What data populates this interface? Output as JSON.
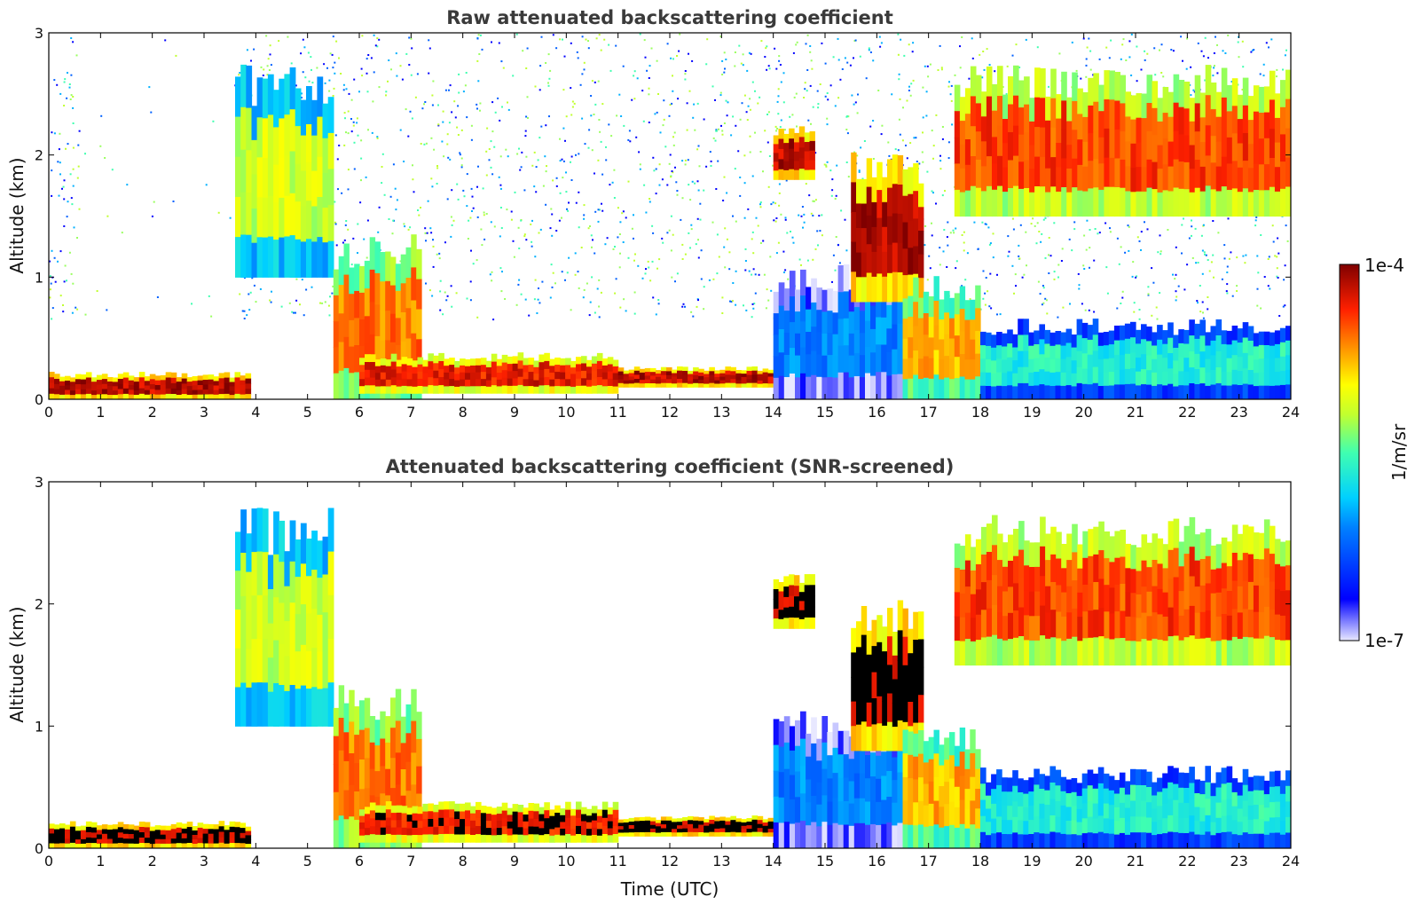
{
  "chart_data": [
    {
      "type": "heatmap",
      "title": "Raw attenuated backscattering coefficient",
      "xlabel": "",
      "ylabel": "Altitude (km)",
      "xlim": [
        0,
        24
      ],
      "ylim": [
        0,
        3
      ],
      "xticks": [
        0,
        1,
        2,
        3,
        4,
        5,
        6,
        7,
        8,
        9,
        10,
        11,
        12,
        13,
        14,
        15,
        16,
        17,
        18,
        19,
        20,
        21,
        22,
        23,
        24
      ],
      "yticks": [
        0,
        1,
        2,
        3
      ],
      "colorscale": "jet",
      "screened": false,
      "features": [
        {
          "kind": "layer",
          "t0": 0.0,
          "t1": 3.9,
          "h0": 0.0,
          "h1": 0.2,
          "v": 0.95
        },
        {
          "kind": "layer",
          "t0": 3.6,
          "t1": 5.5,
          "h0": 1.0,
          "h1": 2.6,
          "v": 0.62
        },
        {
          "kind": "layer",
          "t0": 5.5,
          "t1": 7.2,
          "h0": 0.0,
          "h1": 1.2,
          "v": 0.8
        },
        {
          "kind": "layer",
          "t0": 6.0,
          "t1": 11.0,
          "h0": 0.05,
          "h1": 0.35,
          "v": 0.9
        },
        {
          "kind": "layer",
          "t0": 11.0,
          "t1": 14.0,
          "h0": 0.1,
          "h1": 0.25,
          "v": 0.95
        },
        {
          "kind": "layer",
          "t0": 14.0,
          "t1": 16.5,
          "h0": 0.0,
          "h1": 1.0,
          "v": 0.3
        },
        {
          "kind": "layer",
          "t0": 14.0,
          "t1": 14.8,
          "h0": 1.8,
          "h1": 2.2,
          "v": 0.95
        },
        {
          "kind": "layer",
          "t0": 15.5,
          "t1": 16.9,
          "h0": 0.8,
          "h1": 1.9,
          "v": 0.95
        },
        {
          "kind": "layer",
          "t0": 16.5,
          "t1": 18.0,
          "h0": 0.0,
          "h1": 0.9,
          "v": 0.75
        },
        {
          "kind": "layer",
          "t0": 17.5,
          "t1": 24.0,
          "h0": 1.5,
          "h1": 2.6,
          "v": 0.85
        },
        {
          "kind": "layer",
          "t0": 18.0,
          "t1": 24.0,
          "h0": 0.0,
          "h1": 0.6,
          "v": 0.45
        }
      ]
    },
    {
      "type": "heatmap",
      "title": "Attenuated backscattering coefficient (SNR-screened)",
      "xlabel": "Time (UTC)",
      "ylabel": "Altitude (km)",
      "xlim": [
        0,
        24
      ],
      "ylim": [
        0,
        3
      ],
      "xticks": [
        0,
        1,
        2,
        3,
        4,
        5,
        6,
        7,
        8,
        9,
        10,
        11,
        12,
        13,
        14,
        15,
        16,
        17,
        18,
        19,
        20,
        21,
        22,
        23,
        24
      ],
      "yticks": [
        0,
        1,
        2,
        3
      ],
      "colorscale": "jet",
      "screened": true,
      "features": [
        {
          "kind": "layer",
          "t0": 0.0,
          "t1": 3.9,
          "h0": 0.0,
          "h1": 0.2,
          "v": 0.95
        },
        {
          "kind": "layer",
          "t0": 3.6,
          "t1": 5.5,
          "h0": 1.0,
          "h1": 2.6,
          "v": 0.62
        },
        {
          "kind": "layer",
          "t0": 5.5,
          "t1": 7.2,
          "h0": 0.0,
          "h1": 1.2,
          "v": 0.8
        },
        {
          "kind": "layer",
          "t0": 6.0,
          "t1": 11.0,
          "h0": 0.05,
          "h1": 0.35,
          "v": 0.9
        },
        {
          "kind": "layer",
          "t0": 11.0,
          "t1": 14.0,
          "h0": 0.1,
          "h1": 0.25,
          "v": 0.95
        },
        {
          "kind": "layer",
          "t0": 14.0,
          "t1": 16.5,
          "h0": 0.0,
          "h1": 1.0,
          "v": 0.3
        },
        {
          "kind": "layer",
          "t0": 14.0,
          "t1": 14.8,
          "h0": 1.8,
          "h1": 2.2,
          "v": 0.95
        },
        {
          "kind": "layer",
          "t0": 15.5,
          "t1": 16.9,
          "h0": 0.8,
          "h1": 1.9,
          "v": 0.95
        },
        {
          "kind": "layer",
          "t0": 16.5,
          "t1": 18.0,
          "h0": 0.0,
          "h1": 0.9,
          "v": 0.75
        },
        {
          "kind": "layer",
          "t0": 17.5,
          "t1": 24.0,
          "h0": 1.5,
          "h1": 2.6,
          "v": 0.85
        },
        {
          "kind": "layer",
          "t0": 18.0,
          "t1": 24.0,
          "h0": 0.0,
          "h1": 0.6,
          "v": 0.45
        }
      ]
    }
  ],
  "colorbar": {
    "max_label": "1e-4",
    "min_label": "1e-7",
    "unit_label": "1/m/sr",
    "colorscale": "jet"
  },
  "colors": {
    "title": "#3a3a3a",
    "axis": "#111111",
    "background": "#ffffff"
  }
}
